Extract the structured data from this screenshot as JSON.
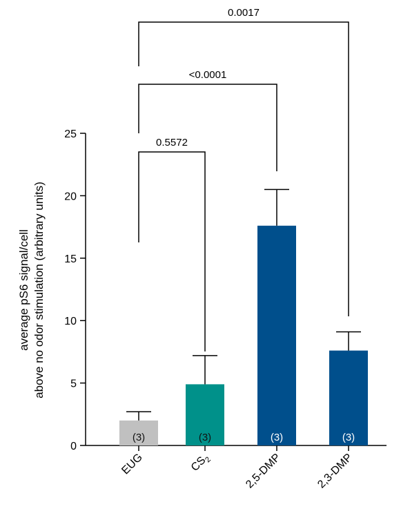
{
  "chart_data": {
    "type": "bar",
    "categories": [
      "EUG",
      "CS2",
      "2,5-DMP",
      "2,3-DMP"
    ],
    "category_labels": [
      {
        "main": "EUG",
        "sub": ""
      },
      {
        "main": "CS",
        "sub": "2"
      },
      {
        "main": "2,5-DMP",
        "sub": ""
      },
      {
        "main": "2,3-DMP",
        "sub": ""
      }
    ],
    "values": [
      2.0,
      4.9,
      17.6,
      7.6
    ],
    "errors": [
      0.7,
      2.3,
      2.9,
      1.5
    ],
    "n_labels": [
      "(3)",
      "(3)",
      "(3)",
      "(3)"
    ],
    "colors": [
      "#c0c0c0",
      "#00918a",
      "#004f8c",
      "#004f8c"
    ],
    "n_label_colors": [
      "#111111",
      "#111111",
      "#ffffff",
      "#ffffff"
    ],
    "ylim": [
      0,
      25
    ],
    "yticks": [
      0,
      5,
      10,
      15,
      20,
      25
    ],
    "ylabel_line1": "average pS6 signal/cell",
    "ylabel_line2": "above no odor stimulation (arbitrary units)",
    "xlabel": "",
    "grid": false,
    "comparisons": [
      {
        "from": "EUG",
        "to": "CS2",
        "p": "0.5572"
      },
      {
        "from": "EUG",
        "to": "2,5-DMP",
        "p": "<0.0001"
      },
      {
        "from": "EUG",
        "to": "2,3-DMP",
        "p": "0.0017"
      }
    ]
  }
}
